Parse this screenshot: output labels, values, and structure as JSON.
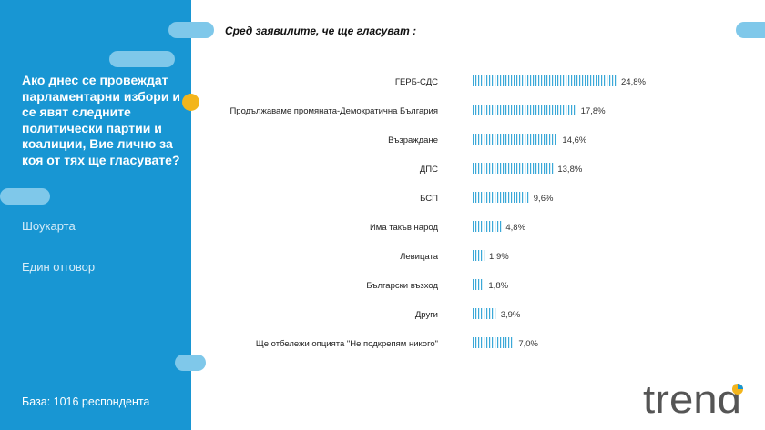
{
  "panel": {
    "question": "Ако днес се провеждат парламентарни избори и се явят следните политически партии и коалиции, Вие лично за коя от тях ще гласувате?",
    "showcard": "Шоукарта",
    "single_answer": "Един отговор",
    "base": "База:  1016 респондента"
  },
  "subtitle": "Сред заявилите,  че ще гласуват :",
  "logo_text": "trend",
  "colors": {
    "panel": "#1896d3",
    "accent": "#f3b51c",
    "bar": "#3aa8d8",
    "pill": "#7fc8ea"
  },
  "chart_data": {
    "type": "bar",
    "orientation": "horizontal",
    "categories": [
      "ГЕРБ-СДС",
      "Продължаваме промяната-Демократична България",
      "Възраждане",
      "ДПС",
      "БСП",
      "Има такъв народ",
      "Левицата",
      "Български възход",
      "Други",
      "Ще отбележи опцията \"Не подкрепям никого\""
    ],
    "values": [
      24.8,
      17.8,
      14.6,
      13.8,
      9.6,
      4.8,
      1.9,
      1.8,
      3.9,
      7.0
    ],
    "labels": [
      "24,8%",
      "17,8%",
      "14,6%",
      "13,8%",
      "9,6%",
      "4,8%",
      "1,9%",
      "1,8%",
      "3,9%",
      "7,0%"
    ],
    "xlim": [
      0,
      24.8
    ],
    "grid": false,
    "legend": "none"
  }
}
